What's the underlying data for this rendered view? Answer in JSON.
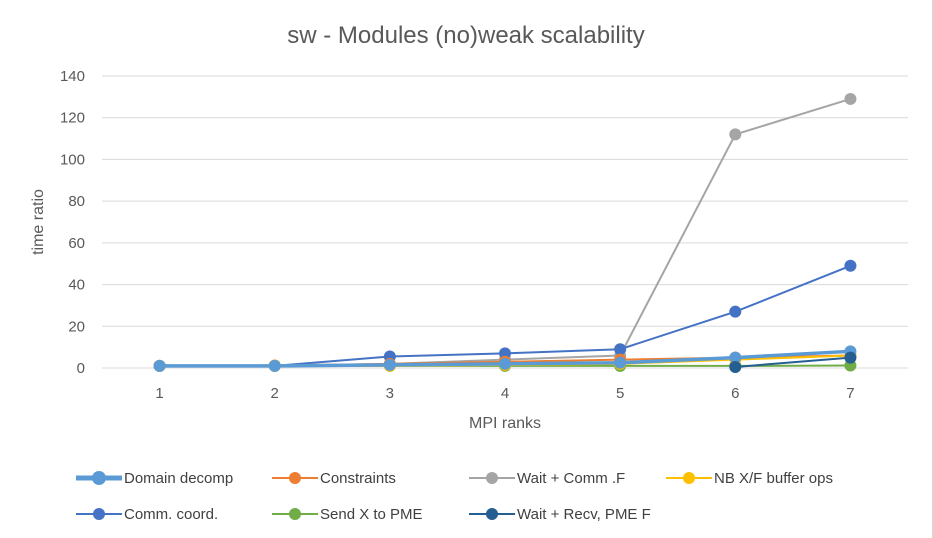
{
  "chart_data": {
    "type": "line",
    "title": "sw - Modules (no)weak scalability",
    "xlabel": "MPI ranks",
    "ylabel": "time ratio",
    "x": [
      1,
      2,
      3,
      4,
      5,
      6,
      7
    ],
    "ylim": [
      0,
      140
    ],
    "yticks": [
      0,
      20,
      40,
      60,
      80,
      100,
      120,
      140
    ],
    "grid": true,
    "legend_position": "bottom",
    "series": [
      {
        "name": "Domain decomp",
        "color": "#5B9BD5",
        "bold": true,
        "values": [
          1,
          1,
          1.5,
          2,
          2.5,
          5,
          8
        ]
      },
      {
        "name": "Constraints",
        "color": "#ED7D31",
        "values": [
          1,
          1.2,
          2,
          3,
          4,
          5,
          6
        ]
      },
      {
        "name": "Wait + Comm .F",
        "color": "#A5A5A5",
        "values": [
          1,
          1,
          2,
          4,
          6,
          112,
          129
        ]
      },
      {
        "name": "NB X/F buffer ops",
        "color": "#FFC000",
        "values": [
          1,
          1,
          1,
          1.5,
          2,
          4,
          6
        ]
      },
      {
        "name": "Comm. coord.",
        "color": "#4472C4",
        "values": [
          1,
          1,
          5.5,
          7,
          9,
          27,
          49
        ]
      },
      {
        "name": "Send X to PME",
        "color": "#70AD47",
        "values": [
          1,
          1,
          1,
          1,
          1,
          1,
          1.2
        ]
      },
      {
        "name": "Wait + Recv, PME F",
        "color": "#255E91",
        "values": [
          null,
          null,
          null,
          null,
          null,
          0.5,
          5
        ]
      }
    ]
  }
}
